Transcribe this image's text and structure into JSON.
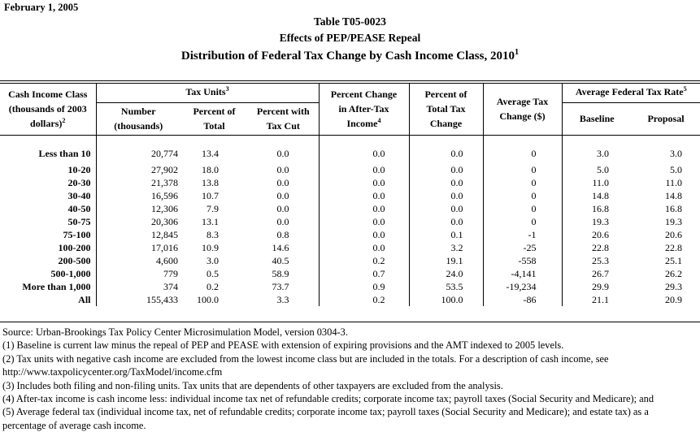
{
  "page": {
    "date": "February 1, 2005"
  },
  "title": {
    "line1": "Table T05-0023",
    "line2": "Effects of PEP/PEASE Repeal",
    "line3": "Distribution of Federal Tax Change by Cash Income Class, 2010",
    "line3_sup": "1"
  },
  "table": {
    "col1_header": {
      "line1": "Cash Income Class",
      "line2": "(thousands of 2003",
      "line3": "dollars)",
      "sup": "2"
    },
    "groups": {
      "tax_units": {
        "label": "Tax Units",
        "sup": "3"
      },
      "avg_federal_tax_rate": {
        "label": "Average Federal Tax Rate",
        "sup": "5"
      }
    },
    "columns": {
      "number": {
        "line1": "Number",
        "line2": "(thousands)"
      },
      "percent_of_total": {
        "line1": "Percent of",
        "line2": "Total"
      },
      "percent_with_tax_cut": {
        "line1": "Percent with",
        "line2": "Tax Cut"
      },
      "pct_change_after_tax_income": {
        "line1": "Percent Change",
        "line2": "in After-Tax",
        "line3": "Income",
        "sup": "4"
      },
      "pct_of_total_tax_change": {
        "line1": "Percent of",
        "line2": "Total Tax",
        "line3": "Change"
      },
      "avg_tax_change": {
        "line1": "Average Tax",
        "line2": "Change ($)"
      },
      "baseline": "Baseline",
      "proposal": "Proposal"
    },
    "rows": [
      [
        "Less than 10",
        "20,774",
        "13.4",
        "0.0",
        "0.0",
        "0.0",
        "0",
        "3.0",
        "3.0"
      ],
      [
        "10-20",
        "27,902",
        "18.0",
        "0.0",
        "0.0",
        "0.0",
        "0",
        "5.0",
        "5.0"
      ],
      [
        "20-30",
        "21,378",
        "13.8",
        "0.0",
        "0.0",
        "0.0",
        "0",
        "11.0",
        "11.0"
      ],
      [
        "30-40",
        "16,596",
        "10.7",
        "0.0",
        "0.0",
        "0.0",
        "0",
        "14.8",
        "14.8"
      ],
      [
        "40-50",
        "12,306",
        "7.9",
        "0.0",
        "0.0",
        "0.0",
        "0",
        "16.8",
        "16.8"
      ],
      [
        "50-75",
        "20,306",
        "13.1",
        "0.0",
        "0.0",
        "0.0",
        "0",
        "19.3",
        "19.3"
      ],
      [
        "75-100",
        "12,845",
        "8.3",
        "0.8",
        "0.0",
        "0.1",
        "-1",
        "20.6",
        "20.6"
      ],
      [
        "100-200",
        "17,016",
        "10.9",
        "14.6",
        "0.0",
        "3.2",
        "-25",
        "22.8",
        "22.8"
      ],
      [
        "200-500",
        "4,600",
        "3.0",
        "40.5",
        "0.2",
        "19.1",
        "-558",
        "25.3",
        "25.1"
      ],
      [
        "500-1,000",
        "779",
        "0.5",
        "58.9",
        "0.7",
        "24.0",
        "-4,141",
        "26.7",
        "26.2"
      ],
      [
        "More than 1,000",
        "374",
        "0.2",
        "73.7",
        "0.9",
        "53.5",
        "-19,234",
        "29.9",
        "29.3"
      ],
      [
        "All",
        "155,433",
        "100.0",
        "3.3",
        "0.2",
        "100.0",
        "-86",
        "21.1",
        "20.9"
      ]
    ]
  },
  "footnotes": [
    "Source: Urban-Brookings Tax Policy Center Microsimulation Model, version 0304-3.",
    "(1) Baseline is current law minus the repeal of PEP and PEASE with extension of expiring provisions and the AMT indexed to 2005 levels.",
    "(2) Tax units with negative cash income are excluded from the lowest income class but are included in the totals. For a description of cash income, see",
    "http://www.taxpolicycenter.org/TaxModel/income.cfm",
    "(3) Includes both filing and non-filing units.  Tax units that are dependents of other taxpayers are excluded from the analysis.",
    "(4) After-tax income is cash income less: individual income tax net of refundable credits; corporate income tax; payroll taxes (Social Security and Medicare); and",
    "(5) Average federal tax (individual income tax, net of refundable credits; corporate income tax; payroll taxes (Social Security and Medicare); and estate tax) as a",
    "percentage of average cash income."
  ]
}
